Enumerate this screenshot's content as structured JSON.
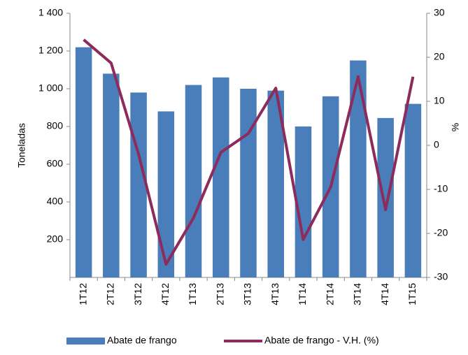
{
  "chart_data": {
    "type": "bar-line",
    "ylabel": "Toneladas",
    "y2label": "%",
    "categories": [
      "1T12",
      "2T12",
      "3T12",
      "4T12",
      "1T13",
      "2T13",
      "3T13",
      "4T13",
      "1T14",
      "2T14",
      "3T14",
      "4T14",
      "1T15"
    ],
    "series": [
      {
        "name": "Abate de frango",
        "type": "bar",
        "color": "#4a7ebb",
        "values": [
          1220,
          1080,
          980,
          880,
          1020,
          1060,
          1000,
          990,
          800,
          960,
          1150,
          845,
          920
        ]
      },
      {
        "name": "Abate de frango - V.H. (%)",
        "type": "line",
        "axis": "y2",
        "color": "#8b2c5c",
        "values": [
          24,
          18.7,
          -2,
          -27,
          -16.5,
          -1.6,
          2.7,
          13,
          -21.4,
          -9.5,
          15.6,
          -14.6,
          15.6
        ]
      }
    ],
    "ylim": [
      0,
      1400
    ],
    "yticks": [
      200,
      400,
      600,
      800,
      {
        "value": 1000,
        "label": "1 000"
      },
      {
        "value": 1200,
        "label": "1 200"
      },
      {
        "value": 1400,
        "label": "1 400"
      }
    ],
    "y2lim": [
      -30,
      30
    ],
    "y2ticks": [
      -30,
      -20,
      -10,
      0,
      10,
      20,
      30
    ],
    "legend": "bottom"
  }
}
